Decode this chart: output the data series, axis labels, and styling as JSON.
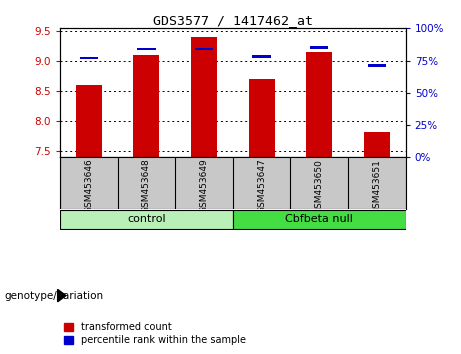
{
  "title": "GDS3577 / 1417462_at",
  "samples": [
    "GSM453646",
    "GSM453648",
    "GSM453649",
    "GSM453647",
    "GSM453650",
    "GSM453651"
  ],
  "red_values": [
    8.61,
    9.1,
    9.4,
    8.7,
    9.15,
    7.82
  ],
  "blue_values_pct": [
    77,
    84,
    84,
    78,
    85,
    71
  ],
  "ylim_left": [
    7.4,
    9.55
  ],
  "ylim_right": [
    0,
    100
  ],
  "yticks_left": [
    7.5,
    8.0,
    8.5,
    9.0,
    9.5
  ],
  "yticks_right": [
    0,
    25,
    50,
    75,
    100
  ],
  "red_color": "#cc0000",
  "blue_color": "#0000cc",
  "group_label": "genotype/variation",
  "legend_red": "transformed count",
  "legend_blue": "percentile rank within the sample",
  "tick_area_color": "#c8c8c8",
  "group_colors": [
    "#b8f0b8",
    "#44dd44"
  ],
  "group_labels": [
    "control",
    "Cbfbeta null"
  ],
  "group_boundary": 2.5
}
